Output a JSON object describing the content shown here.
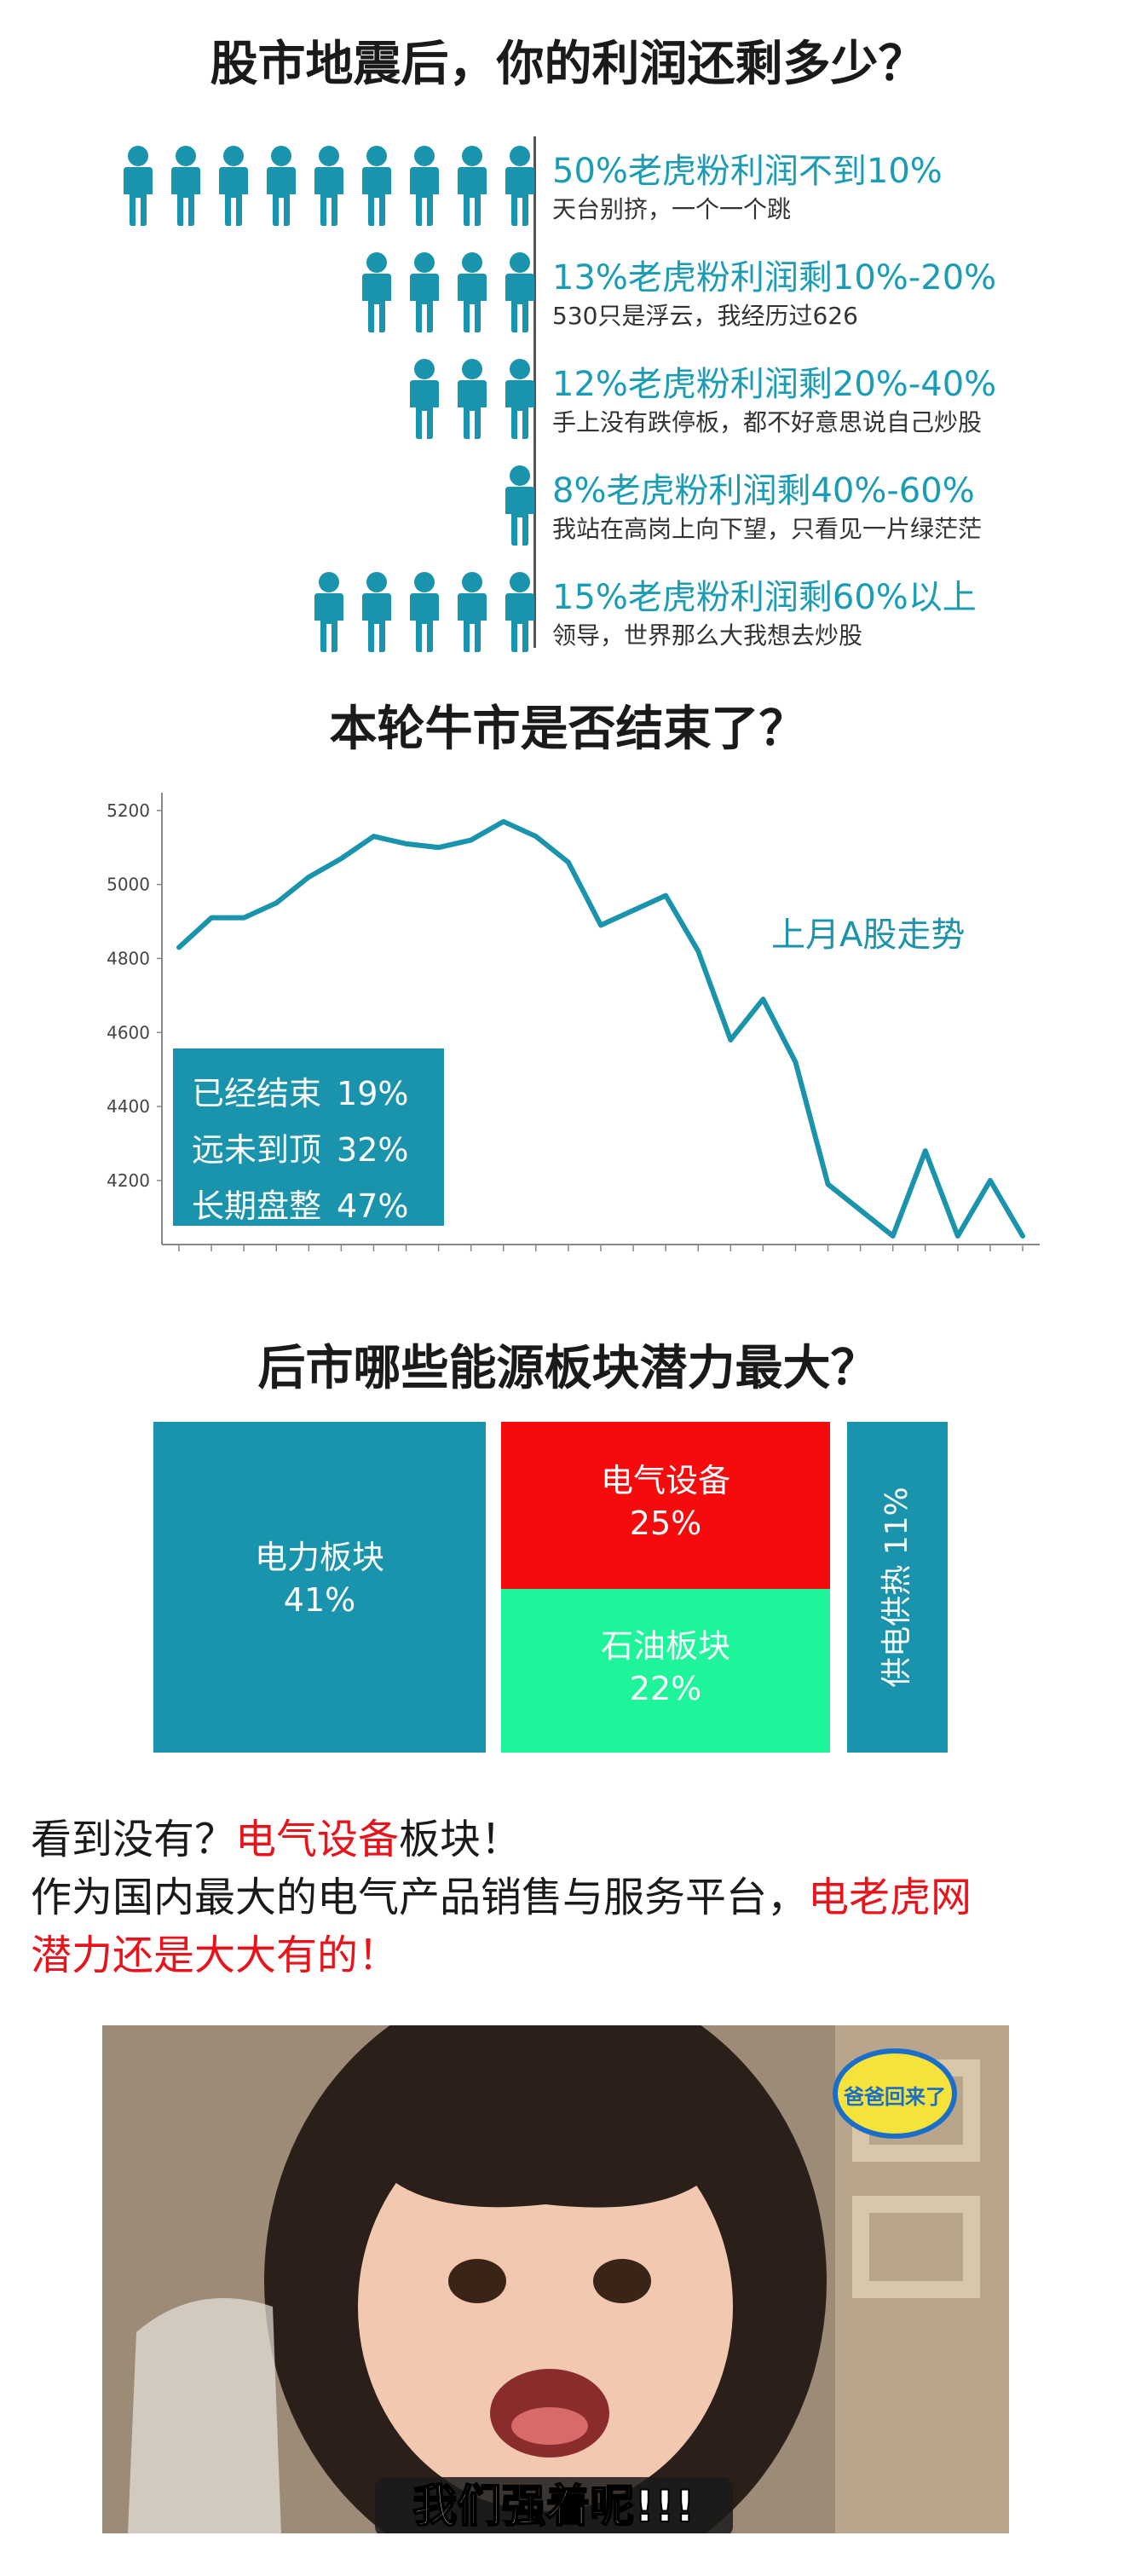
{
  "section1": {
    "title": "股市地震后，你的利润还剩多少？",
    "rows": [
      {
        "icons": 9,
        "main": "50%老虎粉利润不到10%",
        "sub": "天台别挤，一个一个跳"
      },
      {
        "icons": 4,
        "main": "13%老虎粉利润剩10%-20%",
        "sub": "530只是浮云，我经历过626"
      },
      {
        "icons": 3,
        "main": "12%老虎粉利润剩20%-40%",
        "sub": "手上没有跌停板，都不好意思说自己炒股"
      },
      {
        "icons": 1,
        "main": "8%老虎粉利润剩40%-60%",
        "sub": "我站在高岗上向下望，只看见一片绿茫茫"
      },
      {
        "icons": 5,
        "main": "15%老虎粉利润剩60%以上",
        "sub": "领导，世界那么大我想去炒股"
      }
    ],
    "icon_color": "#1a93ad"
  },
  "section2": {
    "title": "本轮牛市是否结束了？",
    "legend": [
      {
        "label": "已经结束",
        "value": "19%"
      },
      {
        "label": "远未到顶",
        "value": "32%"
      },
      {
        "label": "长期盘整",
        "value": "47%"
      }
    ]
  },
  "chart_data": {
    "type": "line",
    "title": "",
    "xlabel": "",
    "ylabel": "",
    "annotation": "上月A股走势",
    "y_ticks": [
      "4200",
      "4400",
      "4600",
      "4800",
      "5000",
      "5200"
    ],
    "ylim": [
      4050,
      5200
    ],
    "x": [
      1,
      2,
      3,
      4,
      5,
      6,
      7,
      8,
      9,
      10,
      11,
      12,
      13,
      14,
      15,
      16,
      17,
      18,
      19,
      20,
      21,
      22,
      23,
      24,
      25,
      26,
      27
    ],
    "values": [
      4830,
      4910,
      4910,
      4950,
      5020,
      5070,
      5130,
      5110,
      5100,
      5120,
      5170,
      5130,
      5060,
      4890,
      4930,
      4970,
      4820,
      4580,
      4690,
      4520,
      4190,
      4120,
      4050,
      4280,
      4050,
      4200,
      4050
    ],
    "line_color": "#1a93ad",
    "grid": false
  },
  "section3": {
    "title": "后市哪些能源板块潜力最大？",
    "cells": [
      {
        "label": "电力板块",
        "value": "41%",
        "color": "#1a93ad"
      },
      {
        "label": "电气设备",
        "value": "25%",
        "color": "#f50b0b"
      },
      {
        "label": "石油板块",
        "value": "22%",
        "color": "#1ef59a"
      },
      {
        "label": "供电供热 11%",
        "color": "#1a93ad"
      }
    ]
  },
  "section4": {
    "line1_a": "看到没有？",
    "line1_b": "电气设备",
    "line1_c": "板块！",
    "line2_a": "作为国内最大的电气产品销售与服务平台，",
    "line2_b": "电老虎网",
    "line3": "潜力还是大大有的！"
  },
  "section5": {
    "badge": "爸爸回来了",
    "caption": "我们强着呢!!!"
  }
}
